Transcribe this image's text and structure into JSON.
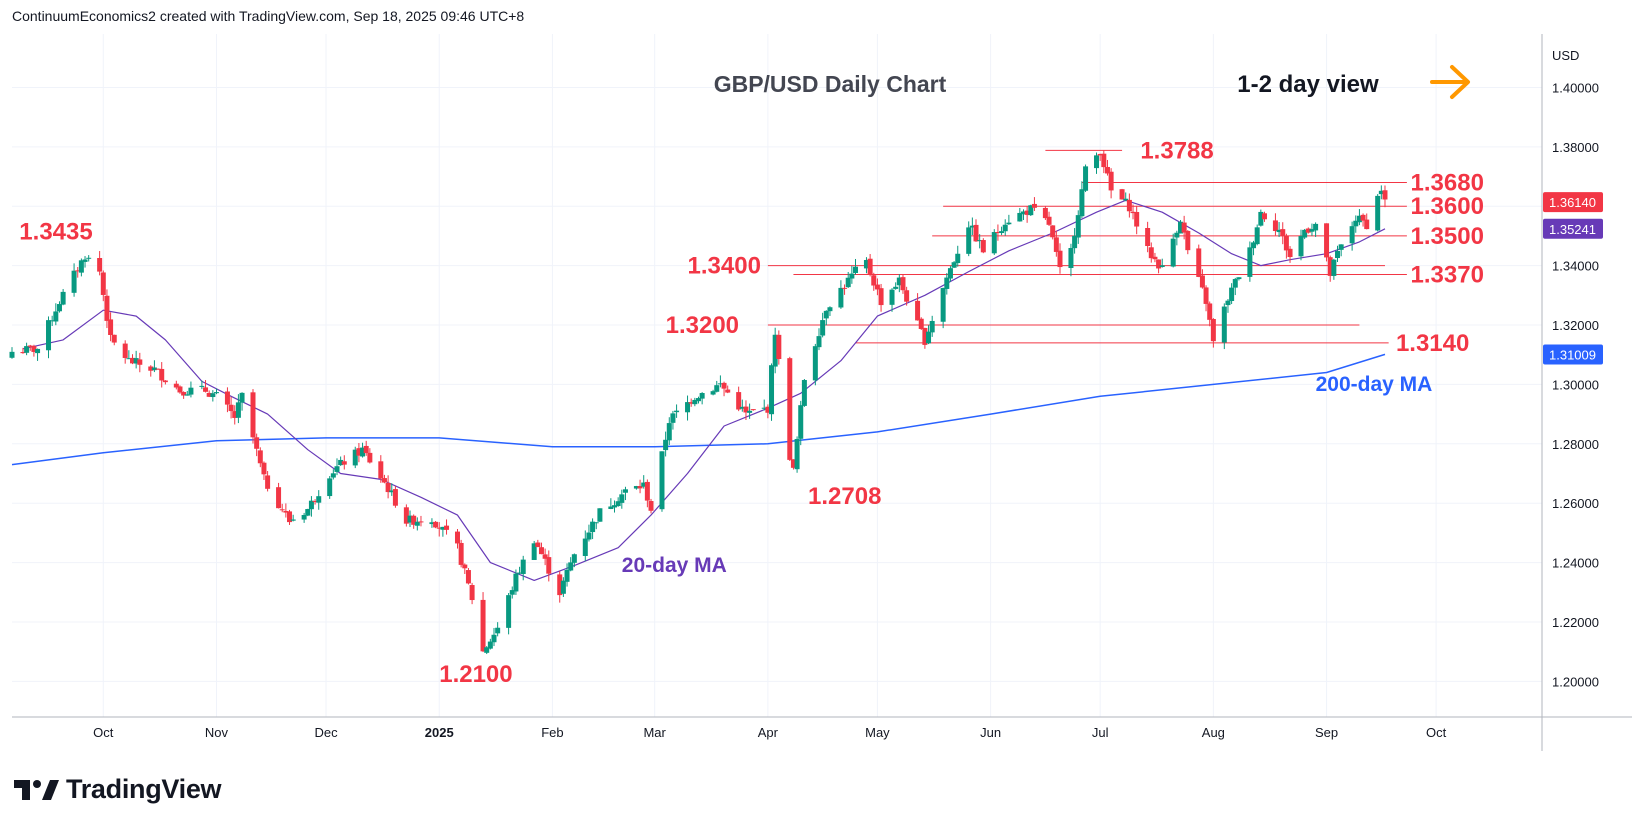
{
  "header": {
    "text": "ContinuumEconomics2 created with TradingView.com, Sep 18, 2025 09:46 UTC+8"
  },
  "brand": {
    "name": "TradingView"
  },
  "colors": {
    "up": "#089981",
    "down": "#f23645",
    "level_line": "#f23645",
    "ma20": "#673ab7",
    "ma200": "#2962ff",
    "arrow": "#ff9800",
    "grid": "#f0f3fa",
    "axis": "#131722"
  },
  "chart_data": {
    "type": "candlestick",
    "title": "GBP/USD Daily Chart",
    "view_label": "1-2 day view",
    "view_icon": "right-arrow-icon",
    "currency": "USD",
    "ylim": [
      1.188,
      1.418
    ],
    "y_ticks": [
      "1.20000",
      "1.22000",
      "1.24000",
      "1.26000",
      "1.28000",
      "1.30000",
      "1.32000",
      "1.34000",
      "1.36000",
      "1.38000",
      "1.40000"
    ],
    "x_ticks": [
      {
        "label": "Oct",
        "date": "2024-10-01",
        "bold": false
      },
      {
        "label": "Nov",
        "date": "2024-11-01",
        "bold": false
      },
      {
        "label": "Dec",
        "date": "2024-12-01",
        "bold": false
      },
      {
        "label": "2025",
        "date": "2025-01-01",
        "bold": true
      },
      {
        "label": "Feb",
        "date": "2025-02-01",
        "bold": false
      },
      {
        "label": "Mar",
        "date": "2025-03-01",
        "bold": false
      },
      {
        "label": "Apr",
        "date": "2025-04-01",
        "bold": false
      },
      {
        "label": "May",
        "date": "2025-05-01",
        "bold": false
      },
      {
        "label": "Jun",
        "date": "2025-06-01",
        "bold": false
      },
      {
        "label": "Jul",
        "date": "2025-07-01",
        "bold": false
      },
      {
        "label": "Aug",
        "date": "2025-08-01",
        "bold": false
      },
      {
        "label": "Sep",
        "date": "2025-09-01",
        "bold": false
      },
      {
        "label": "Oct",
        "date": "2025-10-01",
        "bold": false
      }
    ],
    "x_range": [
      "2024-09-06",
      "2025-10-30"
    ],
    "price_badges": [
      {
        "label": "1.36140",
        "value": 1.3614,
        "color": "#f23645"
      },
      {
        "label": "1.35241",
        "value": 1.35241,
        "color": "#673ab7"
      },
      {
        "label": "1.31009",
        "value": 1.31009,
        "color": "#2962ff"
      }
    ],
    "levels": [
      {
        "label": "1.3788",
        "value": 1.3788,
        "from": "2025-06-16",
        "to": "2025-07-07",
        "label_date": "2025-07-12"
      },
      {
        "label": "1.3680",
        "value": 1.368,
        "from": "2025-06-26",
        "to": "2025-09-23",
        "label_date": "2025-09-24"
      },
      {
        "label": "1.3600",
        "value": 1.36,
        "from": "2025-05-19",
        "to": "2025-09-23",
        "label_date": "2025-09-24"
      },
      {
        "label": "1.3500",
        "value": 1.35,
        "from": "2025-05-16",
        "to": "2025-09-23",
        "label_date": "2025-09-24"
      },
      {
        "label": "1.3400",
        "value": 1.34,
        "from": "2025-04-01",
        "to": "2025-09-17",
        "label_date": "2025-03-10"
      },
      {
        "label": "1.3370",
        "value": 1.337,
        "from": "2025-04-08",
        "to": "2025-09-23",
        "label_date": "2025-09-24"
      },
      {
        "label": "1.3200",
        "value": 1.32,
        "from": "2025-04-01",
        "to": "2025-09-10",
        "label_date": "2025-03-04"
      },
      {
        "label": "1.3140",
        "value": 1.314,
        "from": "2025-04-25",
        "to": "2025-09-18",
        "label_date": "2025-09-20"
      }
    ],
    "extreme_labels": [
      {
        "label": "1.3435",
        "value": 1.3435,
        "date": "2024-09-08",
        "y_value": 1.3515
      },
      {
        "label": "1.2100",
        "value": 1.21,
        "date": "2025-01-01",
        "y_value": 1.2025
      },
      {
        "label": "1.2708",
        "value": 1.2708,
        "date": "2025-04-12",
        "y_value": 1.2625
      }
    ],
    "ma_labels": [
      {
        "label": "20-day MA",
        "date": "2025-02-20",
        "y_value": 1.2395,
        "color": "#673ab7"
      },
      {
        "label": "200-day MA",
        "date": "2025-08-29",
        "y_value": 1.3005,
        "color": "#2962ff"
      }
    ],
    "ma20": [
      [
        "2024-09-09",
        1.312
      ],
      [
        "2024-09-20",
        1.315
      ],
      [
        "2024-10-01",
        1.325
      ],
      [
        "2024-10-10",
        1.323
      ],
      [
        "2024-10-18",
        1.315
      ],
      [
        "2024-10-28",
        1.301
      ],
      [
        "2024-11-05",
        1.296
      ],
      [
        "2024-11-15",
        1.29
      ],
      [
        "2024-11-26",
        1.278
      ],
      [
        "2024-12-05",
        1.27
      ],
      [
        "2024-12-16",
        1.268
      ],
      [
        "2024-12-27",
        1.262
      ],
      [
        "2025-01-06",
        1.256
      ],
      [
        "2025-01-15",
        1.24
      ],
      [
        "2025-01-27",
        1.234
      ],
      [
        "2025-02-07",
        1.239
      ],
      [
        "2025-02-19",
        1.245
      ],
      [
        "2025-02-28",
        1.256
      ],
      [
        "2025-03-10",
        1.27
      ],
      [
        "2025-03-20",
        1.286
      ],
      [
        "2025-04-01",
        1.292
      ],
      [
        "2025-04-10",
        1.297
      ],
      [
        "2025-04-21",
        1.308
      ],
      [
        "2025-05-01",
        1.323
      ],
      [
        "2025-05-14",
        1.33
      ],
      [
        "2025-05-26",
        1.338
      ],
      [
        "2025-06-06",
        1.345
      ],
      [
        "2025-06-18",
        1.351
      ],
      [
        "2025-06-30",
        1.358
      ],
      [
        "2025-07-08",
        1.362
      ],
      [
        "2025-07-18",
        1.358
      ],
      [
        "2025-07-28",
        1.351
      ],
      [
        "2025-08-06",
        1.344
      ],
      [
        "2025-08-14",
        1.34
      ],
      [
        "2025-08-22",
        1.342
      ],
      [
        "2025-09-01",
        1.344
      ],
      [
        "2025-09-10",
        1.348
      ],
      [
        "2025-09-17",
        1.3524
      ]
    ],
    "ma200": [
      [
        "2024-09-06",
        1.273
      ],
      [
        "2024-10-01",
        1.277
      ],
      [
        "2024-11-01",
        1.281
      ],
      [
        "2024-12-01",
        1.282
      ],
      [
        "2025-01-01",
        1.282
      ],
      [
        "2025-02-01",
        1.279
      ],
      [
        "2025-03-01",
        1.279
      ],
      [
        "2025-04-01",
        1.28
      ],
      [
        "2025-05-01",
        1.284
      ],
      [
        "2025-06-01",
        1.29
      ],
      [
        "2025-07-01",
        1.296
      ],
      [
        "2025-08-01",
        1.3
      ],
      [
        "2025-09-01",
        1.304
      ],
      [
        "2025-09-17",
        1.3101
      ]
    ],
    "price_path": [
      [
        "2024-09-06",
        1.311
      ],
      [
        "2024-09-13",
        1.312
      ],
      [
        "2024-09-19",
        1.328
      ],
      [
        "2024-09-24",
        1.339
      ],
      [
        "2024-09-26",
        1.3435
      ],
      [
        "2024-09-30",
        1.338
      ],
      [
        "2024-10-03",
        1.315
      ],
      [
        "2024-10-08",
        1.308
      ],
      [
        "2024-10-15",
        1.305
      ],
      [
        "2024-10-22",
        1.298
      ],
      [
        "2024-10-29",
        1.298
      ],
      [
        "2024-11-01",
        1.296
      ],
      [
        "2024-11-06",
        1.289
      ],
      [
        "2024-11-08",
        1.296
      ],
      [
        "2024-11-14",
        1.268
      ],
      [
        "2024-11-21",
        1.254
      ],
      [
        "2024-11-26",
        1.258
      ],
      [
        "2024-12-02",
        1.27
      ],
      [
        "2024-12-06",
        1.274
      ],
      [
        "2024-12-11",
        1.278
      ],
      [
        "2024-12-18",
        1.265
      ],
      [
        "2024-12-23",
        1.254
      ],
      [
        "2024-12-30",
        1.255
      ],
      [
        "2025-01-06",
        1.245
      ],
      [
        "2025-01-10",
        1.228
      ],
      [
        "2025-01-13",
        1.21
      ],
      [
        "2025-01-17",
        1.218
      ],
      [
        "2025-01-22",
        1.235
      ],
      [
        "2025-01-27",
        1.248
      ],
      [
        "2025-02-03",
        1.23
      ],
      [
        "2025-02-07",
        1.243
      ],
      [
        "2025-02-14",
        1.257
      ],
      [
        "2025-02-21",
        1.264
      ],
      [
        "2025-02-26",
        1.266
      ],
      [
        "2025-02-28",
        1.258
      ],
      [
        "2025-03-05",
        1.288
      ],
      [
        "2025-03-12",
        1.296
      ],
      [
        "2025-03-19",
        1.3
      ],
      [
        "2025-03-26",
        1.29
      ],
      [
        "2025-04-01",
        1.292
      ],
      [
        "2025-04-03",
        1.318
      ],
      [
        "2025-04-07",
        1.276
      ],
      [
        "2025-04-08",
        1.2708
      ],
      [
        "2025-04-11",
        1.302
      ],
      [
        "2025-04-17",
        1.326
      ],
      [
        "2025-04-25",
        1.338
      ],
      [
        "2025-04-28",
        1.341
      ],
      [
        "2025-05-02",
        1.328
      ],
      [
        "2025-05-07",
        1.335
      ],
      [
        "2025-05-12",
        1.32
      ],
      [
        "2025-05-14",
        1.315
      ],
      [
        "2025-05-20",
        1.336
      ],
      [
        "2025-05-26",
        1.354
      ],
      [
        "2025-05-30",
        1.345
      ],
      [
        "2025-06-05",
        1.355
      ],
      [
        "2025-06-12",
        1.359
      ],
      [
        "2025-06-17",
        1.354
      ],
      [
        "2025-06-20",
        1.338
      ],
      [
        "2025-06-23",
        1.345
      ],
      [
        "2025-06-27",
        1.372
      ],
      [
        "2025-07-01",
        1.3788
      ],
      [
        "2025-07-04",
        1.365
      ],
      [
        "2025-07-09",
        1.36
      ],
      [
        "2025-07-14",
        1.345
      ],
      [
        "2025-07-18",
        1.339
      ],
      [
        "2025-07-23",
        1.356
      ],
      [
        "2025-07-25",
        1.345
      ],
      [
        "2025-07-30",
        1.328
      ],
      [
        "2025-08-01",
        1.314
      ],
      [
        "2025-08-05",
        1.329
      ],
      [
        "2025-08-11",
        1.345
      ],
      [
        "2025-08-14",
        1.358
      ],
      [
        "2025-08-19",
        1.352
      ],
      [
        "2025-08-22",
        1.343
      ],
      [
        "2025-08-26",
        1.352
      ],
      [
        "2025-08-29",
        1.354
      ],
      [
        "2025-09-02",
        1.337
      ],
      [
        "2025-09-04",
        1.344
      ],
      [
        "2025-09-09",
        1.356
      ],
      [
        "2025-09-12",
        1.354
      ],
      [
        "2025-09-16",
        1.366
      ],
      [
        "2025-09-17",
        1.3614
      ]
    ]
  }
}
